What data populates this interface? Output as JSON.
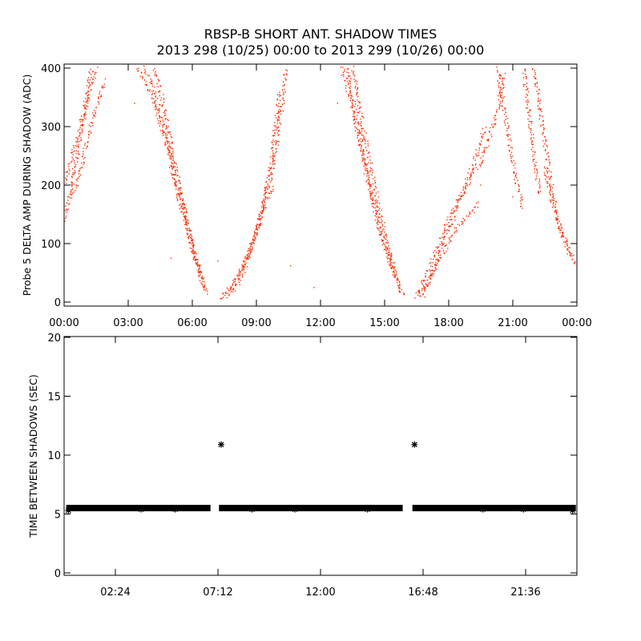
{
  "figure": {
    "title": "RBSP-B SHORT ANT. SHADOW TIMES",
    "subtitle": "2013 298 (10/25) 00:00 to 2013 299 (10/26) 00:00",
    "colors": {
      "background": "#ffffff",
      "axes": "#000000",
      "top_points": "#ff2a00",
      "bottom_points": "#000000"
    }
  },
  "chart_data": [
    {
      "type": "scatter",
      "ylabel": "Probe 5 DELTA AMP DURING SHADOW (ADC)",
      "xlabel": "",
      "xunit": "hours",
      "xlim": [
        0,
        24
      ],
      "ylim": [
        0,
        400
      ],
      "xticks": [
        0,
        3,
        6,
        9,
        12,
        15,
        18,
        21,
        24
      ],
      "xtick_labels": [
        "00:00",
        "03:00",
        "06:00",
        "09:00",
        "12:00",
        "15:00",
        "18:00",
        "21:00",
        "00:00"
      ],
      "yticks": [
        0,
        100,
        200,
        300,
        400
      ],
      "ytick_labels": [
        "0",
        "100",
        "200",
        "300",
        "400"
      ],
      "grid": false,
      "series": [
        {
          "color": "#ff2a00",
          "tracks": [
            [
              [
                0.0,
                140
              ],
              [
                0.3,
                190
              ],
              [
                0.6,
                250
              ],
              [
                0.9,
                310
              ],
              [
                1.2,
                360
              ],
              [
                1.5,
                400
              ]
            ],
            [
              [
                0.0,
                200
              ],
              [
                0.3,
                240
              ],
              [
                0.7,
                290
              ],
              [
                1.0,
                340
              ],
              [
                1.3,
                400
              ]
            ],
            [
              [
                0.4,
                180
              ],
              [
                0.8,
                230
              ],
              [
                1.1,
                280
              ],
              [
                1.5,
                330
              ],
              [
                1.9,
                380
              ]
            ],
            [
              [
                3.4,
                400
              ],
              [
                3.9,
                370
              ],
              [
                4.3,
                330
              ],
              [
                4.7,
                280
              ],
              [
                5.1,
                220
              ],
              [
                5.5,
                160
              ],
              [
                5.9,
                110
              ],
              [
                6.2,
                70
              ],
              [
                6.5,
                35
              ],
              [
                6.7,
                12
              ]
            ],
            [
              [
                3.8,
                400
              ],
              [
                4.2,
                360
              ],
              [
                4.6,
                310
              ],
              [
                5.0,
                250
              ],
              [
                5.3,
                200
              ],
              [
                5.7,
                140
              ],
              [
                6.0,
                90
              ],
              [
                6.4,
                45
              ],
              [
                6.6,
                18
              ]
            ],
            [
              [
                4.2,
                400
              ],
              [
                4.6,
                350
              ],
              [
                4.9,
                290
              ],
              [
                5.2,
                230
              ],
              [
                5.5,
                180
              ],
              [
                5.8,
                130
              ],
              [
                6.1,
                85
              ],
              [
                6.4,
                40
              ]
            ],
            [
              [
                7.3,
                5
              ],
              [
                7.7,
                20
              ],
              [
                8.1,
                40
              ],
              [
                8.5,
                70
              ],
              [
                8.9,
                110
              ],
              [
                9.3,
                160
              ],
              [
                9.7,
                220
              ],
              [
                10.0,
                280
              ],
              [
                10.2,
                340
              ],
              [
                10.4,
                400
              ]
            ],
            [
              [
                7.5,
                8
              ],
              [
                7.9,
                28
              ],
              [
                8.3,
                55
              ],
              [
                8.7,
                90
              ],
              [
                9.1,
                130
              ],
              [
                9.4,
                180
              ],
              [
                9.7,
                240
              ],
              [
                9.9,
                300
              ],
              [
                10.1,
                360
              ]
            ],
            [
              [
                7.8,
                15
              ],
              [
                8.2,
                35
              ],
              [
                8.6,
                75
              ],
              [
                9.0,
                120
              ],
              [
                9.4,
                170
              ],
              [
                9.8,
                200
              ]
            ],
            [
              [
                13.0,
                400
              ],
              [
                13.4,
                350
              ],
              [
                13.8,
                280
              ],
              [
                14.2,
                210
              ],
              [
                14.6,
                150
              ],
              [
                15.0,
                100
              ],
              [
                15.4,
                55
              ],
              [
                15.7,
                25
              ],
              [
                15.9,
                10
              ]
            ],
            [
              [
                13.2,
                400
              ],
              [
                13.6,
                330
              ],
              [
                14.0,
                250
              ],
              [
                14.4,
                180
              ],
              [
                14.8,
                120
              ],
              [
                15.2,
                75
              ],
              [
                15.6,
                35
              ],
              [
                15.8,
                15
              ]
            ],
            [
              [
                13.5,
                400
              ],
              [
                13.9,
                320
              ],
              [
                14.3,
                240
              ],
              [
                14.7,
                170
              ],
              [
                15.1,
                110
              ],
              [
                15.5,
                50
              ]
            ],
            [
              [
                16.5,
                10
              ],
              [
                17.0,
                50
              ],
              [
                17.5,
                95
              ],
              [
                18.0,
                140
              ],
              [
                18.5,
                180
              ],
              [
                19.0,
                210
              ],
              [
                19.5,
                240
              ],
              [
                19.9,
                280
              ],
              [
                20.3,
                330
              ],
              [
                20.6,
                390
              ]
            ],
            [
              [
                16.6,
                8
              ],
              [
                17.1,
                40
              ],
              [
                17.6,
                75
              ],
              [
                18.1,
                110
              ],
              [
                18.6,
                135
              ],
              [
                19.1,
                155
              ],
              [
                19.4,
                170
              ]
            ],
            [
              [
                16.8,
                12
              ],
              [
                17.3,
                55
              ],
              [
                17.8,
                105
              ],
              [
                18.3,
                150
              ],
              [
                18.8,
                200
              ],
              [
                19.3,
                250
              ],
              [
                19.7,
                300
              ]
            ],
            [
              [
                20.3,
                400
              ],
              [
                20.6,
                330
              ],
              [
                20.9,
                260
              ],
              [
                21.2,
                200
              ],
              [
                21.5,
                160
              ]
            ],
            [
              [
                21.5,
                400
              ],
              [
                21.7,
                340
              ],
              [
                21.9,
                280
              ],
              [
                22.1,
                220
              ],
              [
                22.3,
                180
              ]
            ],
            [
              [
                22.5,
                230
              ],
              [
                22.8,
                180
              ],
              [
                23.1,
                140
              ],
              [
                23.4,
                110
              ],
              [
                23.7,
                85
              ],
              [
                24.0,
                60
              ]
            ],
            [
              [
                22.0,
                400
              ],
              [
                22.3,
                320
              ],
              [
                22.6,
                250
              ],
              [
                22.9,
                180
              ],
              [
                23.2,
                130
              ],
              [
                23.5,
                95
              ],
              [
                23.8,
                75
              ]
            ]
          ],
          "isolated": [
            [
              3.3,
              340
            ],
            [
              7.2,
              70
            ],
            [
              10.6,
              62
            ],
            [
              12.8,
              340
            ],
            [
              19.5,
              200
            ],
            [
              21.0,
              180
            ],
            [
              11.7,
              25
            ],
            [
              5.0,
              75
            ]
          ]
        }
      ]
    },
    {
      "type": "scatter",
      "ylabel": "TIME BETWEEN SHADOWS (SEC)",
      "xlabel": "",
      "xunit": "hours",
      "xlim": [
        0,
        24
      ],
      "ylim": [
        0,
        20
      ],
      "xticks": [
        2.4,
        7.2,
        12.0,
        16.8,
        21.6
      ],
      "xtick_labels": [
        "02:24",
        "07:12",
        "12:00",
        "16:48",
        "21:36"
      ],
      "yticks": [
        0,
        5,
        10,
        15,
        20
      ],
      "ytick_labels": [
        "0",
        "5",
        "10",
        "15",
        "20"
      ],
      "grid": false,
      "series": [
        {
          "color": "#000000",
          "marker": "asterisk",
          "baseline_value": 5.5,
          "baseline_ranges": [
            [
              0.1,
              6.85
            ],
            [
              7.25,
              15.85
            ],
            [
              16.3,
              23.95
            ]
          ],
          "points": [
            [
              7.35,
              10.9
            ],
            [
              16.4,
              10.9
            ],
            [
              0.2,
              5.3
            ],
            [
              3.6,
              5.4
            ],
            [
              5.2,
              5.4
            ],
            [
              8.8,
              5.4
            ],
            [
              10.8,
              5.4
            ],
            [
              14.2,
              5.4
            ],
            [
              19.6,
              5.4
            ],
            [
              21.5,
              5.4
            ],
            [
              23.8,
              5.3
            ]
          ]
        }
      ]
    }
  ]
}
